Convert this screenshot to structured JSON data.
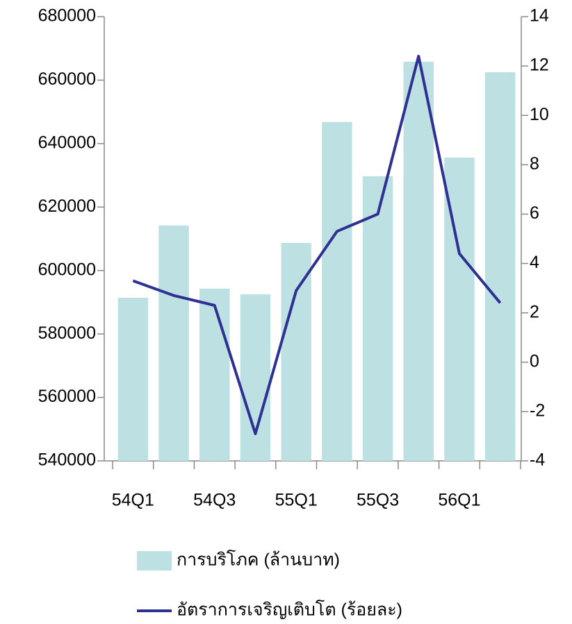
{
  "chart_data": {
    "type": "bar_line",
    "categories": [
      "54Q1",
      null,
      "54Q3",
      null,
      "55Q1",
      null,
      "55Q3",
      null,
      "56Q1",
      null
    ],
    "series": [
      {
        "name": "การบริโภค (ล้านบาท)",
        "type": "bar",
        "color": "#bde0e3",
        "values": [
          591400,
          614200,
          594300,
          592500,
          608700,
          646800,
          629700,
          665800,
          635600,
          662500
        ]
      },
      {
        "name": "อัตราการเจริญเติบโต (ร้อยละ)",
        "type": "line",
        "axis": "y2",
        "color": "#2e3192",
        "values": [
          3.3,
          2.7,
          2.3,
          -2.9,
          2.9,
          5.3,
          6.0,
          12.4,
          4.4,
          2.4
        ]
      }
    ],
    "ylim": [
      540000,
      680000
    ],
    "yticks": [
      540000,
      560000,
      580000,
      600000,
      620000,
      640000,
      660000,
      680000
    ],
    "y2lim": [
      -4,
      14
    ],
    "y2ticks": [
      -4,
      -2,
      0,
      2,
      4,
      6,
      8,
      10,
      12,
      14
    ],
    "grid": false
  }
}
